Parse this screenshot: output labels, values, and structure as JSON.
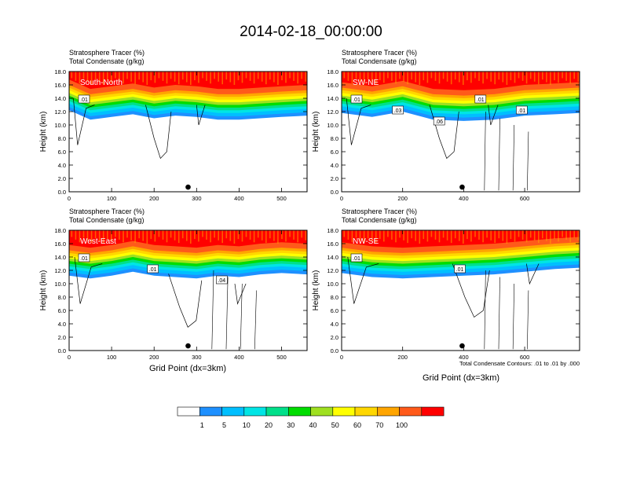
{
  "title": "2014-02-18_00:00:00",
  "panel_header": {
    "line1": "Stratosphere Tracer   (%)",
    "line2": "Total Condensate   (g/kg)"
  },
  "ylabel": "Height (km)",
  "xlabel": "Grid Point (dx=3km)",
  "contour_note": "Total Condensate Contours: .01 to .01 by .000",
  "colorbar": {
    "colors": [
      "#ffffff",
      "#1e90ff",
      "#00bfff",
      "#00e5e5",
      "#00e08a",
      "#00dd00",
      "#9fe020",
      "#ffff00",
      "#ffd700",
      "#ffa500",
      "#ff5a1a",
      "#ff0000"
    ],
    "labels": [
      "1",
      "5",
      "10",
      "20",
      "30",
      "40",
      "50",
      "60",
      "70",
      "100"
    ]
  },
  "chart_data": [
    {
      "type": "heatmap",
      "panel": "South-North",
      "xlim": [
        0,
        560
      ],
      "xticks": [
        "0",
        "100",
        "200",
        "300",
        "400",
        "500"
      ],
      "ylim": [
        0,
        18
      ],
      "yticks": [
        "0.0",
        "2.0",
        "4.0",
        "6.0",
        "8.0",
        "10.0",
        "12.0",
        "14.0",
        "16.0",
        "18.0"
      ],
      "marker_x": 280,
      "contour_labels": [
        ".01"
      ],
      "tropopause_km": [
        {
          "x": 0,
          "y": 15.6
        },
        {
          "x": 50,
          "y": 14.2
        },
        {
          "x": 100,
          "y": 14.6
        },
        {
          "x": 150,
          "y": 15.0
        },
        {
          "x": 200,
          "y": 14.4
        },
        {
          "x": 250,
          "y": 14.8
        },
        {
          "x": 300,
          "y": 14.6
        },
        {
          "x": 350,
          "y": 14.2
        },
        {
          "x": 400,
          "y": 14.2
        },
        {
          "x": 450,
          "y": 14.4
        },
        {
          "x": 500,
          "y": 14.6
        },
        {
          "x": 560,
          "y": 14.8
        }
      ]
    },
    {
      "type": "heatmap",
      "panel": "SW-NE",
      "xlim": [
        0,
        780
      ],
      "xticks": [
        "0",
        "200",
        "400",
        "600"
      ],
      "ylim": [
        0,
        18
      ],
      "yticks": [
        "0.0",
        "2.0",
        "4.0",
        "6.0",
        "8.0",
        "10.0",
        "12.0",
        "14.0",
        "16.0",
        "18.0"
      ],
      "marker_x": 395,
      "contour_labels": [
        ".01",
        ".03",
        ".06",
        ".01",
        ".01"
      ],
      "tropopause_km": [
        {
          "x": 0,
          "y": 15.2
        },
        {
          "x": 100,
          "y": 14.6
        },
        {
          "x": 200,
          "y": 15.4
        },
        {
          "x": 300,
          "y": 14.2
        },
        {
          "x": 400,
          "y": 14.0
        },
        {
          "x": 500,
          "y": 14.2
        },
        {
          "x": 600,
          "y": 14.8
        },
        {
          "x": 700,
          "y": 15.0
        },
        {
          "x": 780,
          "y": 15.2
        }
      ]
    },
    {
      "type": "heatmap",
      "panel": "West-East",
      "xlim": [
        0,
        560
      ],
      "xticks": [
        "0",
        "100",
        "200",
        "300",
        "400",
        "500"
      ],
      "ylim": [
        0,
        18
      ],
      "yticks": [
        "0.0",
        "2.0",
        "4.0",
        "6.0",
        "8.0",
        "10.0",
        "12.0",
        "14.0",
        "16.0",
        "18.0"
      ],
      "marker_x": 280,
      "contour_labels": [
        ".01",
        ".01",
        ".04"
      ],
      "tropopause_km": [
        {
          "x": 0,
          "y": 14.6
        },
        {
          "x": 50,
          "y": 14.2
        },
        {
          "x": 100,
          "y": 14.6
        },
        {
          "x": 150,
          "y": 15.2
        },
        {
          "x": 200,
          "y": 14.6
        },
        {
          "x": 250,
          "y": 14.4
        },
        {
          "x": 300,
          "y": 14.2
        },
        {
          "x": 350,
          "y": 14.6
        },
        {
          "x": 400,
          "y": 14.4
        },
        {
          "x": 450,
          "y": 14.8
        },
        {
          "x": 500,
          "y": 15.0
        },
        {
          "x": 560,
          "y": 14.8
        }
      ]
    },
    {
      "type": "heatmap",
      "panel": "NW-SE",
      "xlim": [
        0,
        780
      ],
      "xticks": [
        "0",
        "200",
        "400",
        "600"
      ],
      "ylim": [
        0,
        18
      ],
      "yticks": [
        "0.0",
        "2.0",
        "4.0",
        "6.0",
        "8.0",
        "10.0",
        "12.0",
        "14.0",
        "16.0",
        "18.0"
      ],
      "marker_x": 395,
      "contour_labels": [
        ".01",
        ".01"
      ],
      "tropopause_km": [
        {
          "x": 0,
          "y": 15.0
        },
        {
          "x": 100,
          "y": 14.4
        },
        {
          "x": 200,
          "y": 14.2
        },
        {
          "x": 300,
          "y": 14.4
        },
        {
          "x": 400,
          "y": 14.6
        },
        {
          "x": 500,
          "y": 14.8
        },
        {
          "x": 600,
          "y": 15.2
        },
        {
          "x": 700,
          "y": 15.6
        },
        {
          "x": 780,
          "y": 15.8
        }
      ]
    }
  ]
}
